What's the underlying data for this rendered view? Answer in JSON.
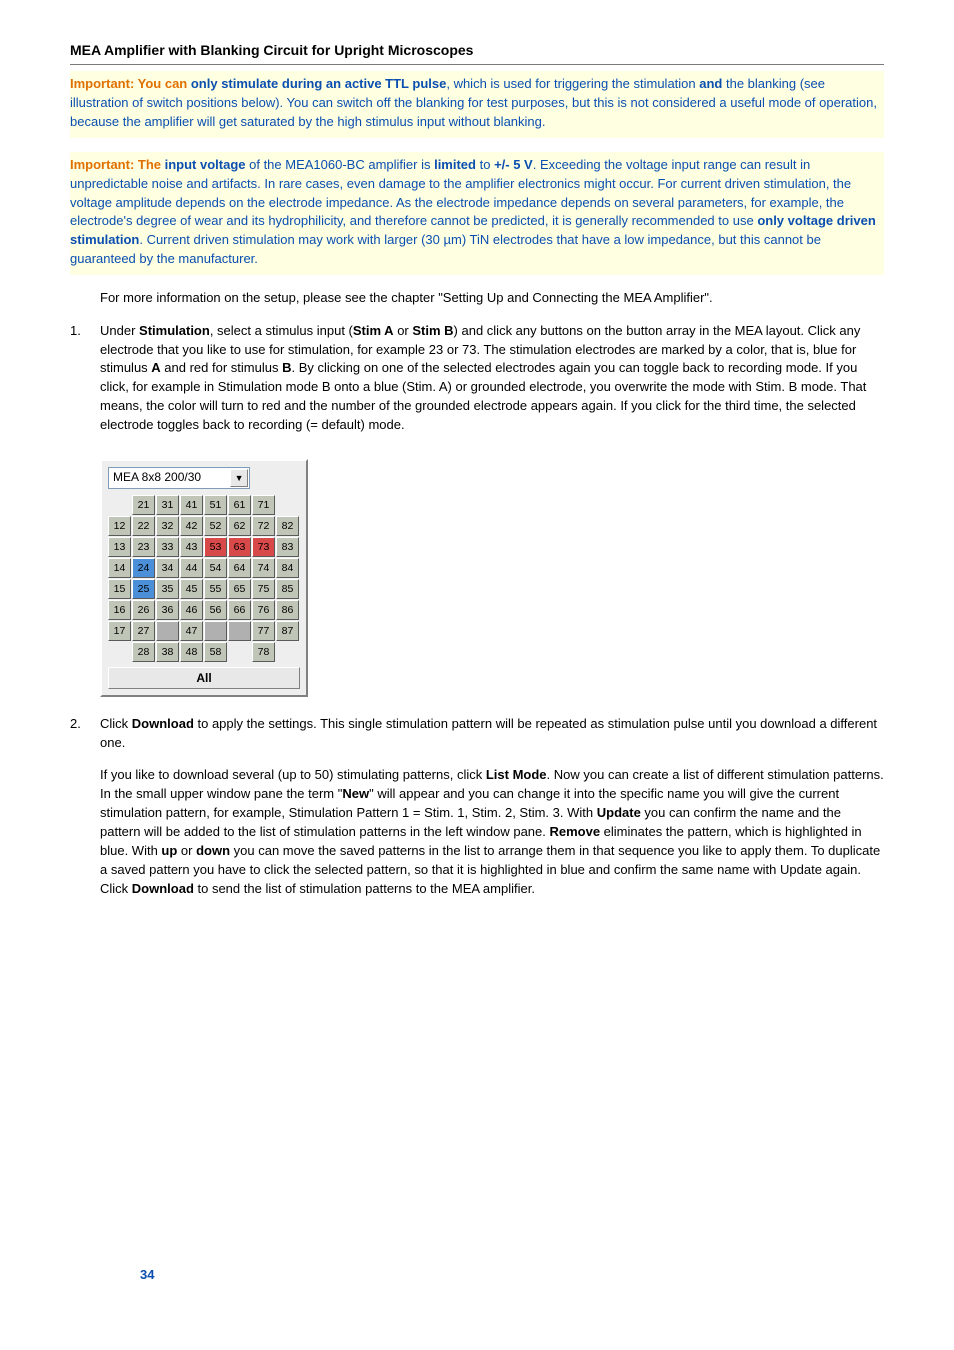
{
  "header": {
    "title": "MEA Amplifier with Blanking Circuit for Upright Microscopes"
  },
  "important1": {
    "prefix": "Important: You can ",
    "b1": "only stimulate during an active TTL pulse",
    "mid1": ", which is used for triggering the stimulation ",
    "b2": "and",
    "tail": " the blanking (see illustration of switch positions below). You can switch off the blanking for test purposes, but this is not considered a useful mode of operation, because the amplifier will get saturated by the high stimulus input without blanking."
  },
  "important2": {
    "p1_prefix": "Important: The ",
    "b_input": "input voltage",
    "p1_mid": " of the MEA1060-BC amplifier is ",
    "b_limited": "limited",
    "p1_mid2": " to ",
    "b_range": "+/- 5 V",
    "p1_tail": ". Exceeding the voltage input range can result in unpredictable noise and artifacts. In rare cases, even damage to the amplifier electronics might occur. For current driven stimulation, the voltage amplitude depends on the electrode impedance. As the electrode impedance depends on several parameters, for example, the electrode's degree of wear and its hydrophilicity, and therefore cannot be predicted, it is generally recommended to use ",
    "b_voltage": "only voltage driven stimulation",
    "p1_end": ". Current driven stimulation may work with larger (30 µm) TiN electrodes that have a low impedance, but this cannot be guaranteed by the manufacturer."
  },
  "setup_para": "For more information on the setup, please see the chapter \"Setting Up and Connecting the MEA Amplifier\".",
  "step1": {
    "num": "1.",
    "t1": "Under ",
    "b_stim": "Stimulation",
    "t2": ", select a stimulus input (",
    "b_sa": "Stim A",
    "t3": " or ",
    "b_sb": "Stim B",
    "t4": ") and click any buttons on the button array in the MEA layout. Click any electrode that you like to use for stimulation, for example 23 or 73. The stimulation electrodes are marked by a color, that is, blue for stimulus ",
    "b_A": "A",
    "t5": " and red for stimulus ",
    "b_B": "B",
    "t6": ". By clicking on one of the selected electrodes again you can toggle back to recording mode. If you click, for example in Stimulation mode B onto a blue (Stim. A) or grounded electrode, you overwrite the mode with Stim. B mode. That means, the color will turn to red and the number of the grounded electrode appears again. If you click for the third time, the selected electrode toggles back to recording (= default) mode."
  },
  "mea": {
    "dropdown_label": "MEA 8x8 200/30",
    "all_label": "All",
    "grid": [
      [
        null,
        "21",
        "31",
        "41",
        "51",
        "61",
        "71",
        null
      ],
      [
        "12",
        "22",
        "32",
        "42",
        "52",
        "62",
        "72",
        "82"
      ],
      [
        "13",
        "23",
        "33",
        "43",
        "53",
        "63",
        "73",
        "83"
      ],
      [
        "14",
        "24",
        "34",
        "44",
        "54",
        "64",
        "74",
        "84"
      ],
      [
        "15",
        "25",
        "35",
        "45",
        "55",
        "65",
        "75",
        "85"
      ],
      [
        "16",
        "26",
        "36",
        "46",
        "56",
        "66",
        "76",
        "86"
      ],
      [
        "17",
        "27",
        null,
        "47",
        null,
        null,
        "77",
        "87"
      ],
      [
        null,
        "28",
        "38",
        "48",
        "58",
        null,
        "78",
        null
      ]
    ],
    "cell_state": {
      "24": "blue",
      "25": "blue",
      "53": "red",
      "63": "red",
      "73": "red",
      "47_blank_left": "gray",
      "47_blank_right": "gray",
      "67_blank": "gray"
    },
    "colors": {
      "normal_bg": "#bfc5b7",
      "blue_bg": "#4a8fd8",
      "red_bg": "#d84a4a",
      "gray_bg": "#b0b0b0",
      "widget_bg": "#eeeeee"
    }
  },
  "step2": {
    "num": "2.",
    "t1": "Click ",
    "b_dl": "Download",
    "t2": " to apply the settings. This single stimulation pattern will be repeated as stimulation pulse until you download a different one."
  },
  "step2_sub": {
    "t1": "If you like to download several (up to 50) stimulating patterns, click ",
    "b_list": "List Mode",
    "t2": ". Now you can create a list of different stimulation patterns. In the small upper window pane the term \"",
    "b_new": "New",
    "t3": "\" will appear and you can change it into the specific name you will give the current stimulation pattern, for example, Stimulation Pattern 1 = Stim. 1, Stim. 2, Stim. 3. With ",
    "b_update": "Update",
    "t4": " you can confirm the name and the pattern will be added to the list of stimulation patterns in the left window pane. ",
    "b_remove": "Remove",
    "t5": " eliminates the pattern, which is highlighted in blue. With ",
    "b_up": "up",
    "t6": " or ",
    "b_down": "down",
    "t7": " you can move the saved patterns in the list to arrange them in that sequence you like to apply them. To duplicate a saved pattern you have to click the selected pattern, so that it is highlighted in blue and confirm the same name with Update again. Click ",
    "b_dl2": "Download",
    "t8": " to send the list of stimulation patterns to the MEA amplifier."
  },
  "page_number": "34"
}
